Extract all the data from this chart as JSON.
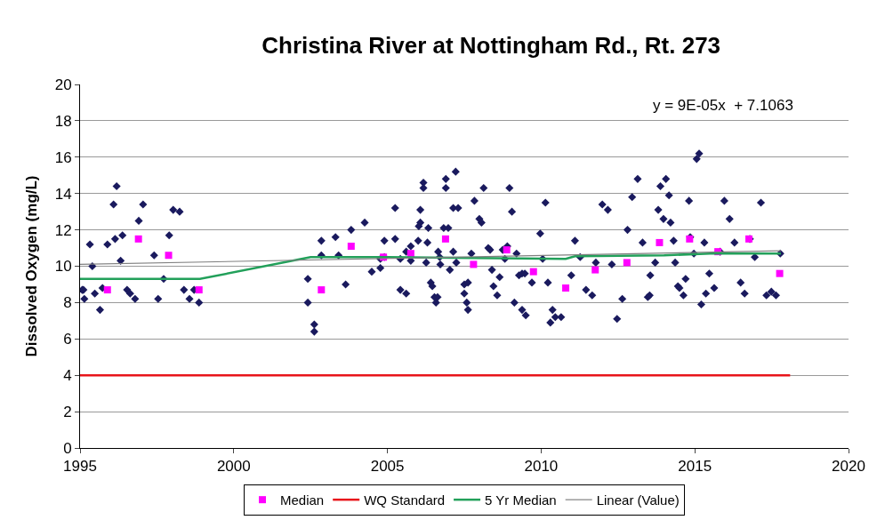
{
  "chart_data": {
    "type": "scatter",
    "title": "Christina River at Nottingham Rd., Rt. 273",
    "ylabel": "Dissolved Oxygen (mg/L)",
    "xlim": [
      1995,
      2020
    ],
    "xticks": [
      1995,
      2000,
      2005,
      2010,
      2015,
      2020
    ],
    "ylim": [
      0,
      20
    ],
    "yticks": [
      0,
      2,
      4,
      6,
      8,
      10,
      12,
      14,
      16,
      18,
      20
    ],
    "grid": "y",
    "legend": "bottom",
    "annotations": [
      "y = 9E-05x  + 7.1063"
    ],
    "series": [
      {
        "marker": "diamond",
        "color": "#1a1a5e",
        "x": [
          1995.07,
          1995.11,
          1995.14,
          1995.32,
          1995.4,
          1995.48,
          1995.65,
          1995.73,
          1995.89,
          1996.09,
          1996.19,
          1996.14,
          1996.38,
          1996.32,
          1996.53,
          1996.63,
          1996.79,
          1996.91,
          1997.05,
          1997.41,
          1997.54,
          1997.72,
          1997.9,
          1998.03,
          1998.24,
          1998.38,
          1998.56,
          1998.71,
          1998.87,
          2002.41,
          2002.41,
          2002.62,
          2002.62,
          2002.85,
          2002.85,
          2003.31,
          2003.41,
          2003.64,
          2003.82,
          2004.26,
          2004.49,
          2004.77,
          2004.77,
          2004.9,
          2004.9,
          2005.25,
          2005.25,
          2005.42,
          2005.61,
          2005.42,
          2005.61,
          2005.76,
          2005.76,
          2006.07,
          2006.07,
          2006.02,
          2006.0,
          2006.17,
          2006.17,
          2006.26,
          2006.33,
          2006.3,
          2006.41,
          2006.46,
          2006.53,
          2006.58,
          2006.63,
          2006.65,
          2006.7,
          2006.72,
          2006.83,
          2006.98,
          2006.9,
          2006.9,
          2007.03,
          2007.14,
          2007.14,
          2007.3,
          2007.22,
          2007.24,
          2007.5,
          2007.62,
          2007.5,
          2007.58,
          2007.62,
          2007.73,
          2007.83,
          2007.99,
          2008.06,
          2008.13,
          2008.28,
          2008.34,
          2008.4,
          2008.45,
          2008.57,
          2008.65,
          2008.75,
          2008.82,
          2008.9,
          2008.97,
          2009.05,
          2009.13,
          2009.2,
          2009.28,
          2009.38,
          2009.47,
          2009.38,
          2009.5,
          2009.7,
          2009.97,
          2010.05,
          2010.14,
          2010.22,
          2010.37,
          2010.3,
          2010.46,
          2010.65,
          2010.98,
          2011.1,
          2011.27,
          2011.46,
          2011.66,
          2011.78,
          2011.99,
          2012.17,
          2012.3,
          2012.47,
          2012.64,
          2012.81,
          2012.96,
          2013.14,
          2013.3,
          2013.47,
          2013.53,
          2013.55,
          2013.71,
          2013.81,
          2013.88,
          2014.06,
          2013.98,
          2014.16,
          2014.21,
          2014.31,
          2014.36,
          2014.45,
          2014.5,
          2014.63,
          2014.7,
          2014.81,
          2014.85,
          2014.97,
          2015.06,
          2015.14,
          2015.21,
          2015.31,
          2015.36,
          2015.47,
          2015.63,
          2015.82,
          2015.96,
          2016.13,
          2016.29,
          2016.49,
          2016.62,
          2016.79,
          2016.95,
          2017.15,
          2017.33,
          2017.49,
          2017.64,
          2017.78
        ],
        "values": [
          8.7,
          8.7,
          8.2,
          11.2,
          10.0,
          8.5,
          7.6,
          8.8,
          11.2,
          13.4,
          14.4,
          11.5,
          11.7,
          10.3,
          8.7,
          8.5,
          8.2,
          12.5,
          13.4,
          10.6,
          8.2,
          9.3,
          11.7,
          13.1,
          13.0,
          8.7,
          8.2,
          8.7,
          8.0,
          9.3,
          8.0,
          6.8,
          6.4,
          11.4,
          10.6,
          11.6,
          10.6,
          9.0,
          12.0,
          12.4,
          9.7,
          9.9,
          10.4,
          11.4,
          10.5,
          13.2,
          11.5,
          8.7,
          8.5,
          10.4,
          10.8,
          11.1,
          10.3,
          13.1,
          12.4,
          12.2,
          11.4,
          14.6,
          14.3,
          10.2,
          12.1,
          11.3,
          9.1,
          8.9,
          8.3,
          8.0,
          8.3,
          10.8,
          10.5,
          10.1,
          12.1,
          12.1,
          14.8,
          14.3,
          9.8,
          10.8,
          13.2,
          13.2,
          15.2,
          10.2,
          9.0,
          9.1,
          8.5,
          8.0,
          7.6,
          10.7,
          13.6,
          12.6,
          12.4,
          14.3,
          11.0,
          10.9,
          9.8,
          8.9,
          8.4,
          9.4,
          10.9,
          10.4,
          11.1,
          14.3,
          13.0,
          8.0,
          10.7,
          9.5,
          9.6,
          9.6,
          7.6,
          7.3,
          9.1,
          11.8,
          10.4,
          13.5,
          9.1,
          7.6,
          6.9,
          7.2,
          7.2,
          9.5,
          11.4,
          10.5,
          8.7,
          8.4,
          10.2,
          13.4,
          13.1,
          10.1,
          7.1,
          8.2,
          12.0,
          13.8,
          14.8,
          11.3,
          8.3,
          8.4,
          9.5,
          10.2,
          13.1,
          14.4,
          14.8,
          12.6,
          13.9,
          12.4,
          11.4,
          10.2,
          8.9,
          8.8,
          8.4,
          9.3,
          13.6,
          11.6,
          10.7,
          15.9,
          16.2,
          7.9,
          11.3,
          8.5,
          9.6,
          8.8,
          10.8,
          13.6,
          12.6,
          11.3,
          9.1,
          8.5,
          11.5,
          10.5,
          13.5,
          8.4,
          8.6,
          8.4,
          10.7
        ]
      },
      {
        "name": "Median",
        "type": "scatter",
        "marker": "square",
        "color": "#ff00ff",
        "x": [
          1995.89,
          1996.9,
          1997.88,
          1998.87,
          2002.85,
          2003.82,
          2004.87,
          2005.76,
          2006.89,
          2007.8,
          2008.88,
          2009.75,
          2010.8,
          2011.76,
          2012.79,
          2013.85,
          2014.83,
          2015.75,
          2016.76,
          2017.76
        ],
        "values": [
          8.7,
          11.5,
          10.6,
          8.7,
          8.7,
          11.1,
          10.5,
          10.7,
          11.5,
          10.1,
          10.9,
          9.7,
          8.8,
          9.8,
          10.2,
          11.3,
          11.5,
          10.8,
          11.5,
          9.6
        ]
      },
      {
        "name": "WQ Standard",
        "type": "line",
        "marker": "none",
        "color": "#e8151b",
        "x": [
          1995,
          2018.1
        ],
        "values": [
          4,
          4
        ]
      },
      {
        "name": "5 Yr Median",
        "type": "line",
        "marker": "none",
        "color": "#22a05a",
        "x": [
          1995,
          1998.9,
          2002.5,
          2005,
          2010.8,
          2011.1,
          2014,
          2015.5,
          2017.8
        ],
        "values": [
          9.3,
          9.3,
          10.5,
          10.5,
          10.4,
          10.55,
          10.6,
          10.7,
          10.7
        ]
      },
      {
        "name": "Linear (Value)",
        "type": "line",
        "marker": "none",
        "color": "#808080",
        "x": [
          1995,
          2017.8
        ],
        "values": [
          10.1,
          10.85
        ]
      }
    ]
  }
}
